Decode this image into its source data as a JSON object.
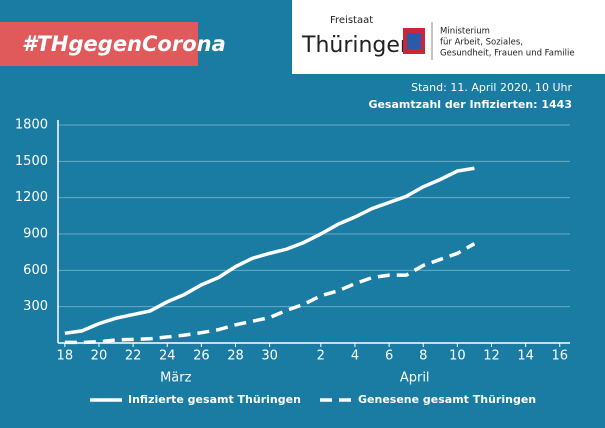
{
  "header": {
    "hashtag": "#THgegenCorona",
    "state_small": "Freistaat",
    "state": "Thüringen",
    "ministry": [
      "Ministerium",
      "für Arbeit, Soziales,",
      "Gesundheit, Frauen und Familie"
    ]
  },
  "chart_data": {
    "type": "line",
    "annotations": [
      "Stand: 11. April 2020, 10 Uhr",
      "Gesamtzahl der Infizierten: 1443"
    ],
    "month_labels": [
      {
        "value": 24.5,
        "label": "März"
      },
      {
        "value": 38.5,
        "label": "April"
      }
    ],
    "x": [
      18,
      19,
      20,
      21,
      22,
      23,
      24,
      25,
      26,
      27,
      28,
      29,
      30,
      31,
      32,
      33,
      34,
      35,
      36,
      37,
      38,
      39,
      40,
      41,
      42
    ],
    "series": [
      {
        "name": "Infizierte gesamt Thüringen",
        "color": "#ffffff",
        "dash": false,
        "values": [
          80,
          100,
          160,
          205,
          235,
          265,
          340,
          400,
          480,
          540,
          630,
          700,
          740,
          775,
          830,
          900,
          980,
          1040,
          1110,
          1160,
          1210,
          1290,
          1350,
          1420,
          1443
        ]
      },
      {
        "name": "Genesene gesamt Thüringen",
        "color": "#ffffff",
        "dash": true,
        "values": [
          5,
          5,
          10,
          25,
          30,
          35,
          50,
          65,
          85,
          110,
          150,
          180,
          210,
          270,
          320,
          390,
          430,
          490,
          540,
          560,
          560,
          640,
          690,
          740,
          820
        ]
      }
    ],
    "xlim": [
      17.6,
      47.6
    ],
    "xticks": [
      18,
      20,
      22,
      24,
      26,
      28,
      30,
      {
        "value": 33,
        "label": "2"
      },
      {
        "value": 35,
        "label": "4"
      },
      {
        "value": 37,
        "label": "6"
      },
      {
        "value": 39,
        "label": "8"
      },
      {
        "value": 41,
        "label": "10"
      },
      {
        "value": 43,
        "label": "12"
      },
      {
        "value": 45,
        "label": "14"
      },
      {
        "value": 47,
        "label": "16"
      }
    ],
    "ylim": [
      0,
      1800
    ],
    "yticks": [
      300,
      600,
      900,
      1200,
      1500,
      1800
    ],
    "grid": true,
    "legend": "bottom"
  }
}
